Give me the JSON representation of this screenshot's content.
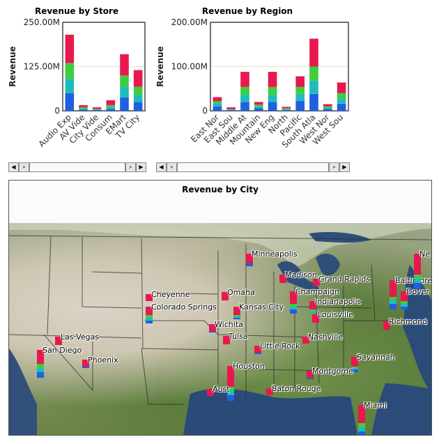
{
  "colors": {
    "s1": "#1f5fe0",
    "s2": "#1fbcbc",
    "s3": "#3fcc3f",
    "s4": "#e8184f",
    "axis": "#555555",
    "grid": "#e6e6c8"
  },
  "chart_data": [
    {
      "type": "bar",
      "stacked": true,
      "title": "Revenue by Store",
      "ylabel": "Revenue",
      "xlabel": "",
      "ylim": [
        0,
        250
      ],
      "y_ticks": [
        "0",
        "125.00M",
        "250.00M"
      ],
      "y_tick_values": [
        0,
        125,
        250
      ],
      "categories": [
        "Audio Exp",
        "AV Vide",
        "City Vide",
        "Consum",
        "EMart",
        "TV City"
      ],
      "series": [
        {
          "values": [
            50,
            3,
            2,
            5,
            38,
            25
          ]
        },
        {
          "values": [
            40,
            3,
            2,
            5,
            30,
            20
          ]
        },
        {
          "values": [
            45,
            4,
            2,
            6,
            32,
            23
          ]
        },
        {
          "values": [
            80,
            6,
            4,
            14,
            60,
            47
          ]
        }
      ]
    },
    {
      "type": "bar",
      "stacked": true,
      "title": "Revenue by Region",
      "ylabel": "Revenue",
      "xlabel": "",
      "ylim": [
        0,
        200
      ],
      "y_ticks": [
        "0",
        "100.00M",
        "200.00M"
      ],
      "y_tick_values": [
        0,
        100,
        200
      ],
      "categories": [
        "East Nor",
        "East Sou",
        "Middle At",
        "Mountain",
        "New Eng",
        "North",
        "Pacific",
        "South Atla",
        "West Nor",
        "West Sou"
      ],
      "series": [
        {
          "values": [
            10,
            2,
            20,
            6,
            20,
            2,
            22,
            38,
            4,
            16
          ]
        },
        {
          "values": [
            6,
            1,
            16,
            4,
            16,
            2,
            16,
            30,
            3,
            12
          ]
        },
        {
          "values": [
            6,
            1,
            18,
            4,
            18,
            2,
            16,
            32,
            3,
            12
          ]
        },
        {
          "values": [
            9,
            4,
            34,
            6,
            34,
            3,
            24,
            63,
            5,
            24
          ]
        }
      ]
    }
  ],
  "map": {
    "title": "Revenue by City",
    "cities": [
      {
        "name": "Minneapolis",
        "stack": [
          4,
          0,
          0,
          14
        ]
      },
      {
        "name": "Madison",
        "stack": [
          0,
          0,
          0,
          12
        ]
      },
      {
        "name": "Grand Rapids",
        "stack": [
          0,
          0,
          0,
          10
        ]
      },
      {
        "name": "Cheyenne",
        "stack": [
          0,
          0,
          0,
          10
        ]
      },
      {
        "name": "Omaha",
        "stack": [
          0,
          0,
          0,
          12
        ]
      },
      {
        "name": "Champaign",
        "stack": [
          6,
          4,
          4,
          18
        ]
      },
      {
        "name": "Colorado Springs",
        "stack": [
          4,
          4,
          4,
          12
        ]
      },
      {
        "name": "Kansas City",
        "stack": [
          2,
          2,
          2,
          12
        ]
      },
      {
        "name": "Indianapolis",
        "stack": [
          0,
          2,
          2,
          12
        ]
      },
      {
        "name": "Louisville",
        "stack": [
          0,
          0,
          0,
          12
        ]
      },
      {
        "name": "Wichita",
        "stack": [
          2,
          0,
          0,
          10
        ]
      },
      {
        "name": "Las Vegas",
        "stack": [
          0,
          0,
          0,
          12
        ]
      },
      {
        "name": "Tulsa",
        "stack": [
          0,
          0,
          0,
          12
        ]
      },
      {
        "name": "Nashville",
        "stack": [
          0,
          0,
          0,
          10
        ]
      },
      {
        "name": "San Diego",
        "stack": [
          8,
          6,
          6,
          20
        ]
      },
      {
        "name": "Little Rock",
        "stack": [
          2,
          0,
          0,
          10
        ]
      },
      {
        "name": "Phoenix",
        "stack": [
          2,
          0,
          0,
          10
        ]
      },
      {
        "name": "Savannah",
        "stack": [
          4,
          2,
          2,
          14
        ]
      },
      {
        "name": "Houston",
        "stack": [
          8,
          6,
          6,
          30
        ]
      },
      {
        "name": "Montgome",
        "stack": [
          2,
          0,
          0,
          10
        ]
      },
      {
        "name": "Aust",
        "stack": [
          0,
          0,
          0,
          10
        ]
      },
      {
        "name": "Baton Rouge",
        "stack": [
          0,
          0,
          0,
          10
        ]
      },
      {
        "name": "Miami",
        "stack": [
          8,
          6,
          6,
          26
        ]
      },
      {
        "name": "Baltimore",
        "stack": [
          8,
          6,
          4,
          24
        ]
      },
      {
        "name": "Dover",
        "stack": [
          4,
          4,
          4,
          14
        ]
      },
      {
        "name": "Richmond",
        "stack": [
          0,
          0,
          0,
          12
        ]
      },
      {
        "name": "Ne",
        "stack": [
          8,
          6,
          6,
          30
        ]
      }
    ]
  }
}
